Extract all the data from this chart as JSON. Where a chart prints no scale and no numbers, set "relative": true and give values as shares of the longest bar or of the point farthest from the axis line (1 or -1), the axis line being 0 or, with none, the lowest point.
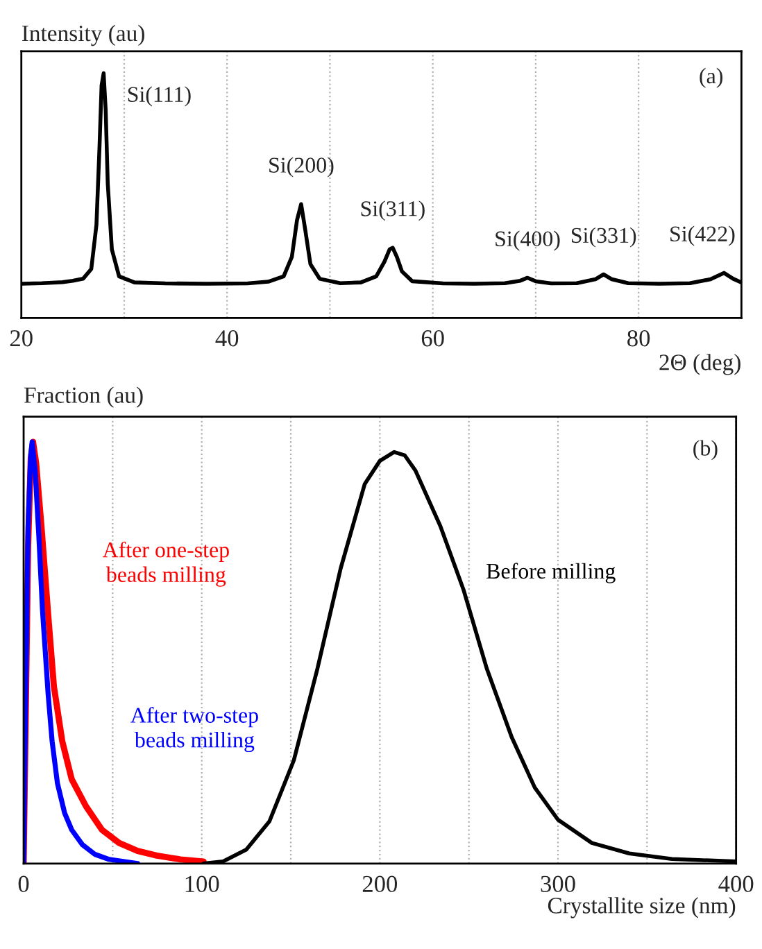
{
  "chart_data": [
    {
      "type": "line",
      "ylabel": "Intensity (au)",
      "xlabel": "2Θ (deg)",
      "relative": true,
      "xlim": [
        20,
        90
      ],
      "xticks": [
        20,
        {
          "value": 30,
          "label": null
        },
        40,
        {
          "value": 50,
          "label": null
        },
        60,
        {
          "value": 70,
          "label": null
        },
        80
      ],
      "grid": "x",
      "legend": false,
      "marker": "none",
      "line_style": "solid",
      "series": [
        {
          "color": "#000000",
          "x": [
            20,
            22,
            24,
            25,
            26,
            26.8,
            27.3,
            27.6,
            27.8,
            28.0,
            28.2,
            28.4,
            28.8,
            29.5,
            31,
            34,
            38,
            42,
            44,
            45.5,
            46.3,
            46.8,
            47.2,
            47.6,
            48.1,
            49,
            51,
            53,
            54.5,
            55.3,
            55.8,
            56.1,
            56.5,
            57,
            58,
            61,
            64,
            67,
            68.5,
            69.2,
            70,
            71.5,
            74,
            75.8,
            76.6,
            77.4,
            79,
            82,
            85,
            87,
            88.3,
            89.2,
            90
          ],
          "values": [
            0.14,
            0.142,
            0.146,
            0.152,
            0.16,
            0.2,
            0.38,
            0.7,
            0.95,
            1.0,
            0.85,
            0.55,
            0.28,
            0.17,
            0.145,
            0.141,
            0.14,
            0.141,
            0.148,
            0.17,
            0.25,
            0.4,
            0.465,
            0.36,
            0.22,
            0.16,
            0.142,
            0.145,
            0.17,
            0.23,
            0.28,
            0.287,
            0.25,
            0.19,
            0.15,
            0.141,
            0.14,
            0.142,
            0.152,
            0.164,
            0.15,
            0.141,
            0.142,
            0.158,
            0.178,
            0.158,
            0.142,
            0.14,
            0.142,
            0.158,
            0.184,
            0.16,
            0.145
          ]
        }
      ],
      "annotations": [
        {
          "text": "Si(111)",
          "x": 28.0,
          "y": 1.0
        },
        {
          "text": "Si(200)",
          "x": 47.2,
          "y": 0.465
        },
        {
          "text": "Si(311)",
          "x": 56.1,
          "y": 0.287
        },
        {
          "text": "Si(400)",
          "x": 69.2,
          "y": 0.164
        },
        {
          "text": "Si(331)",
          "x": 76.6,
          "y": 0.178
        },
        {
          "text": "Si(422)",
          "x": 88.3,
          "y": 0.184
        },
        "(a)"
      ]
    },
    {
      "type": "line",
      "ylabel": "Fraction (au)",
      "xlabel": "Crystallite size (nm)",
      "relative": true,
      "xlim": [
        0,
        400
      ],
      "xticks": [
        0,
        {
          "value": 50,
          "label": null
        },
        100,
        {
          "value": 150,
          "label": null
        },
        200,
        {
          "value": 250,
          "label": null
        },
        300,
        {
          "value": 350,
          "label": null
        },
        400
      ],
      "grid": "x",
      "legend": false,
      "marker": "none",
      "line_style": "solid",
      "series": [
        {
          "name": "After one-step\nbeads milling",
          "color": "#ff0000",
          "x": [
            0,
            1,
            2.5,
            4,
            5.3,
            7,
            10,
            13.8,
            17,
            21.7,
            27,
            35,
            44,
            53.6,
            64,
            74.8,
            88,
            101
          ],
          "values": [
            0,
            0.3,
            0.75,
            0.96,
            1.0,
            0.95,
            0.8,
            0.589,
            0.42,
            0.29,
            0.2,
            0.136,
            0.08,
            0.049,
            0.03,
            0.019,
            0.01,
            0.005
          ]
        },
        {
          "name": "After two-step\nbeads milling",
          "color": "#0000ff",
          "x": [
            0,
            1,
            2.5,
            4,
            4.8,
            6.5,
            8.5,
            10.6,
            13.8,
            16,
            19,
            23,
            27,
            33,
            40,
            48,
            56,
            64
          ],
          "values": [
            0,
            0.35,
            0.8,
            0.97,
            1.0,
            0.93,
            0.78,
            0.6,
            0.4,
            0.29,
            0.19,
            0.12,
            0.08,
            0.045,
            0.022,
            0.01,
            0.005,
            0
          ]
        },
        {
          "name": "Before milling",
          "color": "#000000",
          "x": [
            101,
            112,
            125,
            138,
            151.7,
            165,
            178,
            191.5,
            200,
            208,
            214,
            220,
            234,
            247,
            260,
            274,
            287,
            300,
            319,
            340,
            364,
            400
          ],
          "values": [
            0,
            0.005,
            0.033,
            0.1,
            0.245,
            0.463,
            0.7,
            0.9,
            0.955,
            0.976,
            0.968,
            0.932,
            0.8,
            0.649,
            0.463,
            0.3,
            0.18,
            0.104,
            0.049,
            0.024,
            0.011,
            0.005
          ]
        }
      ],
      "annotations": [
        "(b)"
      ]
    }
  ]
}
